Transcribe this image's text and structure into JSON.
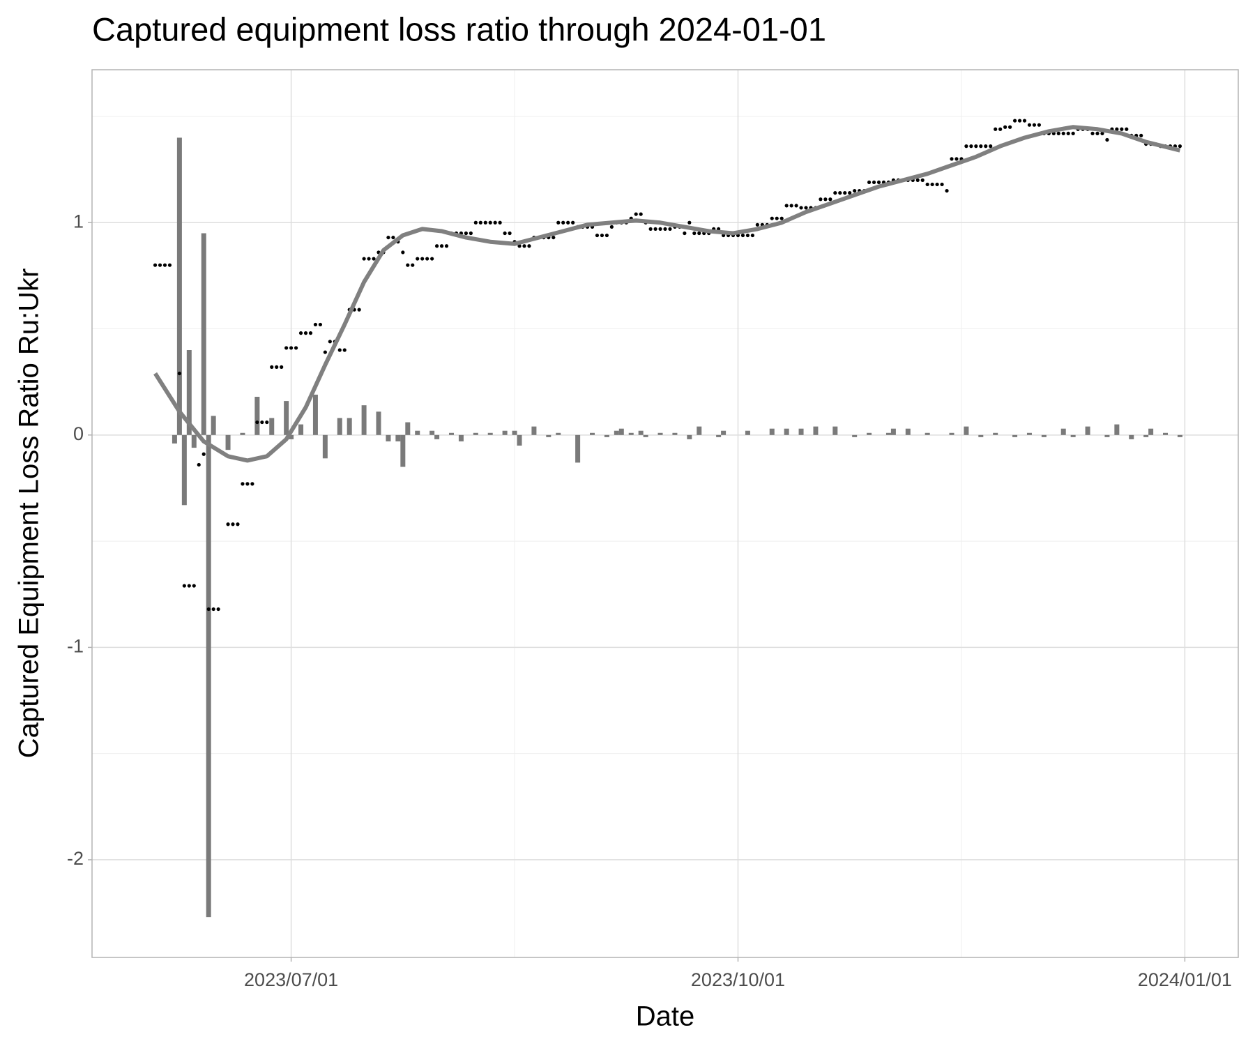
{
  "chart_data": {
    "type": "combo",
    "title": "Captured equipment loss ratio through 2024-01-01",
    "x_label": "Date",
    "y_label": "Captured Equipment Loss Ratio Ru:Ukr",
    "xlim": [
      "2023/05/21",
      "2024/01/12"
    ],
    "xticks": [
      "2023/07/01",
      "2023/10/01",
      "2024/01/01"
    ],
    "xminor": [
      "2023/08/16",
      "2023/11/16"
    ],
    "ylim": [
      -2.46,
      1.72
    ],
    "yticks": [
      -2,
      -1,
      0,
      1
    ],
    "yminor": [
      -1.5,
      -0.5,
      0.5,
      1.5
    ],
    "grid": true,
    "series": [
      {
        "type": "bar",
        "color": "#7a7a7a",
        "x": [
          "2023/06/07",
          "2023/06/08",
          "2023/06/09",
          "2023/06/10",
          "2023/06/11",
          "2023/06/13",
          "2023/06/14",
          "2023/06/15",
          "2023/06/18",
          "2023/06/21",
          "2023/06/24",
          "2023/06/27",
          "2023/06/30",
          "2023/07/01",
          "2023/07/03",
          "2023/07/06",
          "2023/07/08",
          "2023/07/11",
          "2023/07/13",
          "2023/07/16",
          "2023/07/19",
          "2023/07/21",
          "2023/07/23",
          "2023/07/24",
          "2023/07/25",
          "2023/07/27",
          "2023/07/30",
          "2023/07/31",
          "2023/08/03",
          "2023/08/05",
          "2023/08/08",
          "2023/08/11",
          "2023/08/14",
          "2023/08/16",
          "2023/08/17",
          "2023/08/20",
          "2023/08/23",
          "2023/08/25",
          "2023/08/29",
          "2023/09/01",
          "2023/09/04",
          "2023/09/06",
          "2023/09/07",
          "2023/09/09",
          "2023/09/11",
          "2023/09/12",
          "2023/09/15",
          "2023/09/18",
          "2023/09/21",
          "2023/09/23",
          "2023/09/27",
          "2023/09/28",
          "2023/10/03",
          "2023/10/08",
          "2023/10/11",
          "2023/10/14",
          "2023/10/17",
          "2023/10/21",
          "2023/10/25",
          "2023/10/28",
          "2023/11/01",
          "2023/11/02",
          "2023/11/05",
          "2023/11/09",
          "2023/11/14",
          "2023/11/17",
          "2023/11/20",
          "2023/11/23",
          "2023/11/27",
          "2023/11/30",
          "2023/12/03",
          "2023/12/07",
          "2023/12/09",
          "2023/12/12",
          "2023/12/16",
          "2023/12/18",
          "2023/12/21",
          "2023/12/24",
          "2023/12/25",
          "2023/12/28",
          "2023/12/31"
        ],
        "values": [
          -0.04,
          1.4,
          -0.33,
          0.4,
          -0.06,
          0.95,
          -2.27,
          0.09,
          -0.07,
          0.01,
          0.18,
          0.08,
          0.16,
          -0.02,
          0.05,
          0.19,
          -0.11,
          0.08,
          0.08,
          0.14,
          0.11,
          -0.03,
          -0.03,
          -0.15,
          0.06,
          0.02,
          0.02,
          -0.02,
          0.01,
          -0.03,
          0.01,
          0.01,
          0.02,
          0.02,
          -0.05,
          0.04,
          -0.01,
          0.01,
          -0.13,
          0.01,
          -0.01,
          0.02,
          0.03,
          0.01,
          0.02,
          -0.01,
          0.01,
          0.01,
          -0.02,
          0.04,
          -0.01,
          0.02,
          0.02,
          0.03,
          0.03,
          0.03,
          0.04,
          0.04,
          -0.01,
          0.01,
          0.01,
          0.03,
          0.03,
          0.01,
          0.01,
          0.04,
          -0.01,
          0.01,
          -0.01,
          0.01,
          -0.01,
          0.03,
          -0.01,
          0.04,
          -0.01,
          0.05,
          -0.02,
          -0.01,
          0.03,
          0.01,
          -0.01
        ]
      },
      {
        "type": "scatter",
        "color": "#000000",
        "x": [
          "2023/06/03",
          "2023/06/04",
          "2023/06/05",
          "2023/06/06",
          "2023/06/08",
          "2023/06/09",
          "2023/06/10",
          "2023/06/11",
          "2023/06/12",
          "2023/06/13",
          "2023/06/14",
          "2023/06/15",
          "2023/06/16",
          "2023/06/18",
          "2023/06/19",
          "2023/06/20",
          "2023/06/21",
          "2023/06/22",
          "2023/06/23",
          "2023/06/24",
          "2023/06/25",
          "2023/06/26",
          "2023/06/27",
          "2023/06/28",
          "2023/06/29",
          "2023/06/30",
          "2023/07/01",
          "2023/07/02",
          "2023/07/03",
          "2023/07/04",
          "2023/07/05",
          "2023/07/06",
          "2023/07/07",
          "2023/07/08",
          "2023/07/09",
          "2023/07/10",
          "2023/07/11",
          "2023/07/12",
          "2023/07/13",
          "2023/07/14",
          "2023/07/15",
          "2023/07/16",
          "2023/07/17",
          "2023/07/18",
          "2023/07/19",
          "2023/07/20",
          "2023/07/21",
          "2023/07/22",
          "2023/07/23",
          "2023/07/24",
          "2023/07/25",
          "2023/07/26",
          "2023/07/27",
          "2023/07/28",
          "2023/07/29",
          "2023/07/30",
          "2023/07/31",
          "2023/08/01",
          "2023/08/02",
          "2023/08/03",
          "2023/08/04",
          "2023/08/05",
          "2023/08/06",
          "2023/08/07",
          "2023/08/08",
          "2023/08/09",
          "2023/08/10",
          "2023/08/11",
          "2023/08/12",
          "2023/08/13",
          "2023/08/14",
          "2023/08/15",
          "2023/08/16",
          "2023/08/17",
          "2023/08/18",
          "2023/08/19",
          "2023/08/20",
          "2023/08/21",
          "2023/08/22",
          "2023/08/23",
          "2023/08/24",
          "2023/08/25",
          "2023/08/26",
          "2023/08/27",
          "2023/08/28",
          "2023/08/29",
          "2023/08/30",
          "2023/08/31",
          "2023/09/01",
          "2023/09/02",
          "2023/09/03",
          "2023/09/04",
          "2023/09/05",
          "2023/09/06",
          "2023/09/07",
          "2023/09/08",
          "2023/09/09",
          "2023/09/10",
          "2023/09/11",
          "2023/09/12",
          "2023/09/13",
          "2023/09/14",
          "2023/09/15",
          "2023/09/16",
          "2023/09/17",
          "2023/09/18",
          "2023/09/19",
          "2023/09/20",
          "2023/09/21",
          "2023/09/22",
          "2023/09/23",
          "2023/09/24",
          "2023/09/25",
          "2023/09/26",
          "2023/09/27",
          "2023/09/28",
          "2023/09/29",
          "2023/09/30",
          "2023/10/01",
          "2023/10/02",
          "2023/10/03",
          "2023/10/04",
          "2023/10/05",
          "2023/10/06",
          "2023/10/07",
          "2023/10/08",
          "2023/10/09",
          "2023/10/10",
          "2023/10/11",
          "2023/10/12",
          "2023/10/13",
          "2023/10/14",
          "2023/10/15",
          "2023/10/16",
          "2023/10/17",
          "2023/10/18",
          "2023/10/19",
          "2023/10/20",
          "2023/10/21",
          "2023/10/22",
          "2023/10/23",
          "2023/10/24",
          "2023/10/25",
          "2023/10/26",
          "2023/10/27",
          "2023/10/28",
          "2023/10/29",
          "2023/10/30",
          "2023/10/31",
          "2023/11/01",
          "2023/11/02",
          "2023/11/03",
          "2023/11/04",
          "2023/11/05",
          "2023/11/06",
          "2023/11/07",
          "2023/11/08",
          "2023/11/09",
          "2023/11/10",
          "2023/11/11",
          "2023/11/12",
          "2023/11/13",
          "2023/11/14",
          "2023/11/15",
          "2023/11/16",
          "2023/11/17",
          "2023/11/18",
          "2023/11/19",
          "2023/11/20",
          "2023/11/21",
          "2023/11/22",
          "2023/11/23",
          "2023/11/24",
          "2023/11/25",
          "2023/11/26",
          "2023/11/27",
          "2023/11/28",
          "2023/11/29",
          "2023/11/30",
          "2023/12/01",
          "2023/12/02",
          "2023/12/03",
          "2023/12/04",
          "2023/12/05",
          "2023/12/06",
          "2023/12/07",
          "2023/12/08",
          "2023/12/09",
          "2023/12/10",
          "2023/12/11",
          "2023/12/12",
          "2023/12/13",
          "2023/12/14",
          "2023/12/15",
          "2023/12/16",
          "2023/12/17",
          "2023/12/18",
          "2023/12/19",
          "2023/12/20",
          "2023/12/21",
          "2023/12/22",
          "2023/12/23",
          "2023/12/24",
          "2023/12/25",
          "2023/12/26",
          "2023/12/27",
          "2023/12/28",
          "2023/12/29",
          "2023/12/30",
          "2023/12/31"
        ],
        "values": [
          0.8,
          0.8,
          0.8,
          0.8,
          0.29,
          -0.71,
          -0.71,
          -0.71,
          -0.14,
          -0.09,
          -0.82,
          -0.82,
          -0.82,
          -0.42,
          -0.42,
          -0.42,
          -0.23,
          -0.23,
          -0.23,
          0.06,
          0.06,
          0.06,
          0.32,
          0.32,
          0.32,
          0.41,
          0.41,
          0.41,
          0.48,
          0.48,
          0.48,
          0.52,
          0.52,
          0.39,
          0.44,
          0.44,
          0.4,
          0.4,
          0.59,
          0.59,
          0.59,
          0.83,
          0.83,
          0.83,
          0.86,
          0.86,
          0.93,
          0.93,
          0.91,
          0.86,
          0.8,
          0.8,
          0.83,
          0.83,
          0.83,
          0.83,
          0.89,
          0.89,
          0.89,
          0.95,
          0.95,
          0.95,
          0.95,
          0.95,
          1,
          1,
          1,
          1,
          1,
          1,
          0.95,
          0.95,
          0.91,
          0.89,
          0.89,
          0.89,
          0.93,
          0.93,
          0.93,
          0.93,
          0.93,
          1,
          1,
          1,
          1,
          0.98,
          0.98,
          0.98,
          0.98,
          0.94,
          0.94,
          0.94,
          0.98,
          1,
          1,
          1,
          1.02,
          1.04,
          1.04,
          1,
          0.97,
          0.97,
          0.97,
          0.97,
          0.97,
          0.98,
          0.98,
          0.95,
          1,
          0.95,
          0.95,
          0.95,
          0.95,
          0.97,
          0.97,
          0.94,
          0.94,
          0.94,
          0.94,
          0.94,
          0.94,
          0.94,
          0.99,
          0.99,
          0.99,
          1.02,
          1.02,
          1.02,
          1.08,
          1.08,
          1.08,
          1.07,
          1.07,
          1.07,
          1.07,
          1.11,
          1.11,
          1.11,
          1.14,
          1.14,
          1.14,
          1.14,
          1.15,
          1.15,
          1.15,
          1.19,
          1.19,
          1.19,
          1.19,
          1.19,
          1.2,
          1.2,
          1.2,
          1.2,
          1.2,
          1.2,
          1.2,
          1.18,
          1.18,
          1.18,
          1.18,
          1.15,
          1.3,
          1.3,
          1.3,
          1.36,
          1.36,
          1.36,
          1.36,
          1.36,
          1.36,
          1.44,
          1.44,
          1.45,
          1.45,
          1.48,
          1.48,
          1.48,
          1.46,
          1.46,
          1.46,
          1.42,
          1.42,
          1.42,
          1.42,
          1.42,
          1.42,
          1.42,
          1.44,
          1.44,
          1.44,
          1.42,
          1.42,
          1.42,
          1.39,
          1.44,
          1.44,
          1.44,
          1.44,
          1.41,
          1.41,
          1.41,
          1.37,
          1.37,
          1.37,
          1.36,
          1.36,
          1.36,
          1.36,
          1.36
        ]
      },
      {
        "type": "line",
        "color": "#808080",
        "x": [
          "2023/06/03",
          "2023/06/08",
          "2023/06/13",
          "2023/06/18",
          "2023/06/22",
          "2023/06/26",
          "2023/06/30",
          "2023/07/04",
          "2023/07/08",
          "2023/07/12",
          "2023/07/16",
          "2023/07/20",
          "2023/07/24",
          "2023/07/28",
          "2023/08/01",
          "2023/08/06",
          "2023/08/11",
          "2023/08/16",
          "2023/08/21",
          "2023/08/26",
          "2023/08/31",
          "2023/09/05",
          "2023/09/10",
          "2023/09/15",
          "2023/09/20",
          "2023/09/25",
          "2023/09/30",
          "2023/10/05",
          "2023/10/10",
          "2023/10/15",
          "2023/10/20",
          "2023/10/25",
          "2023/10/30",
          "2023/11/04",
          "2023/11/09",
          "2023/11/14",
          "2023/11/19",
          "2023/11/24",
          "2023/11/29",
          "2023/12/04",
          "2023/12/09",
          "2023/12/14",
          "2023/12/19",
          "2023/12/24",
          "2023/12/31"
        ],
        "values": [
          0.29,
          0.11,
          -0.03,
          -0.1,
          -0.12,
          -0.1,
          -0.02,
          0.13,
          0.33,
          0.52,
          0.72,
          0.87,
          0.94,
          0.97,
          0.96,
          0.93,
          0.91,
          0.9,
          0.93,
          0.96,
          0.99,
          1,
          1.01,
          1,
          0.98,
          0.96,
          0.95,
          0.97,
          1,
          1.05,
          1.09,
          1.13,
          1.17,
          1.2,
          1.23,
          1.27,
          1.31,
          1.36,
          1.4,
          1.43,
          1.45,
          1.44,
          1.42,
          1.38,
          1.34
        ]
      }
    ]
  }
}
